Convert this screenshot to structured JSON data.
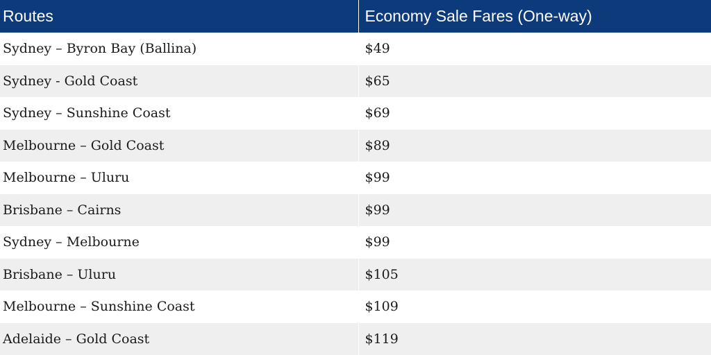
{
  "table": {
    "headers": {
      "route": "Routes",
      "fare": "Economy Sale Fares (One-way)"
    },
    "rows": [
      {
        "route": "Sydney – Byron Bay (Ballina)",
        "fare": "$49"
      },
      {
        "route": "Sydney - Gold Coast",
        "fare": "$65"
      },
      {
        "route": "Sydney – Sunshine Coast",
        "fare": "$69"
      },
      {
        "route": "Melbourne – Gold Coast",
        "fare": "$89"
      },
      {
        "route": "Melbourne – Uluru",
        "fare": "$99"
      },
      {
        "route": "Brisbane – Cairns",
        "fare": "$99"
      },
      {
        "route": "Sydney – Melbourne",
        "fare": "$99"
      },
      {
        "route": "Brisbane – Uluru",
        "fare": "$105"
      },
      {
        "route": "Melbourne – Sunshine Coast",
        "fare": "$109"
      },
      {
        "route": "Adelaide – Gold Coast",
        "fare": "$119"
      }
    ]
  },
  "colors": {
    "header_background": "#0d3a7a",
    "header_text": "#ffffff",
    "stripe_row": "#efefef",
    "body_text": "#1a1a1a"
  }
}
